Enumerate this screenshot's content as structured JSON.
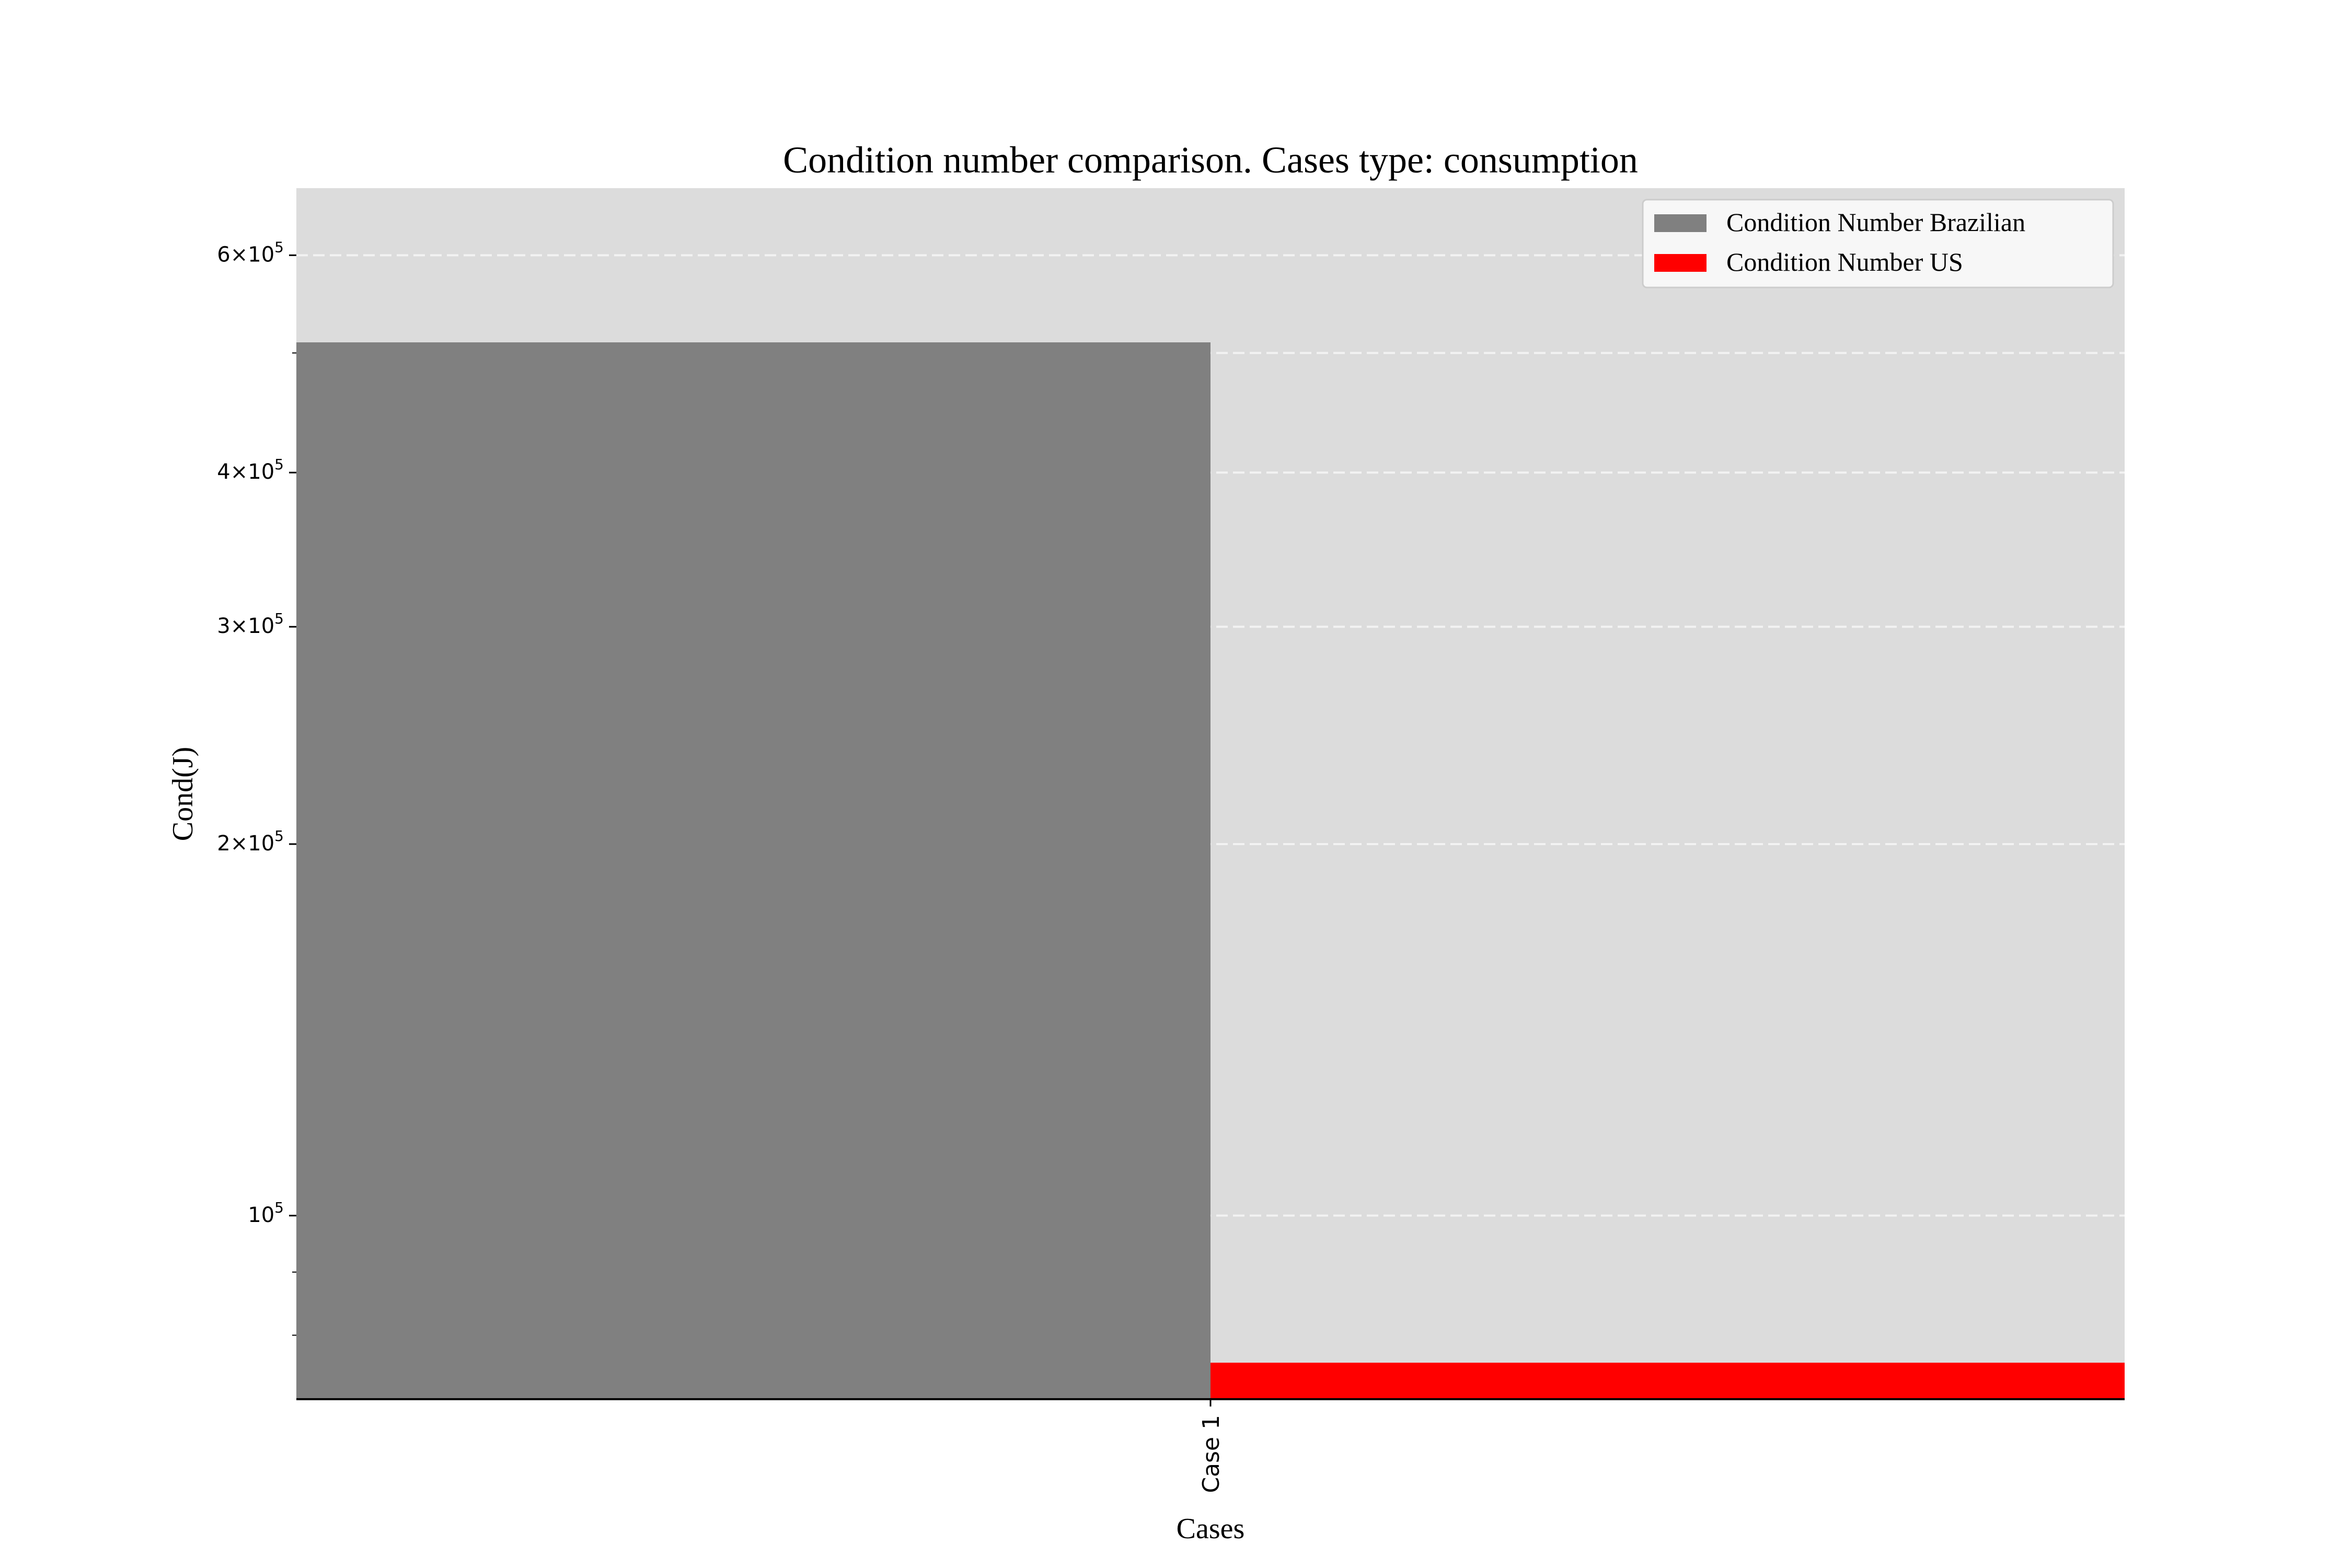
{
  "chart_data": {
    "type": "bar",
    "title": "Condition number comparison. Cases type: consumption",
    "xlabel": "Cases",
    "ylabel": "Cond(J)",
    "categories": [
      "Case 1"
    ],
    "series": [
      {
        "name": "Condition Number Brazilian",
        "values": [
          510000
        ],
        "color": "#808080"
      },
      {
        "name": "Condition Number US",
        "values": [
          76000
        ],
        "color": "#ff0000"
      }
    ],
    "yscale": "log",
    "ylim": [
      71000,
      680000
    ],
    "yticks": [
      {
        "value": 100000,
        "mantissa": "",
        "exp": "5"
      },
      {
        "value": 200000,
        "mantissa": "2",
        "exp": "5"
      },
      {
        "value": 300000,
        "mantissa": "3",
        "exp": "5"
      },
      {
        "value": 400000,
        "mantissa": "4",
        "exp": "5"
      },
      {
        "value": 600000,
        "mantissa": "6",
        "exp": "5"
      }
    ],
    "minor_yticks": [
      80000,
      90000,
      500000
    ],
    "grid": true,
    "grid_axis": "y",
    "legend_position": "top-right",
    "background": "#dcdcdc"
  }
}
